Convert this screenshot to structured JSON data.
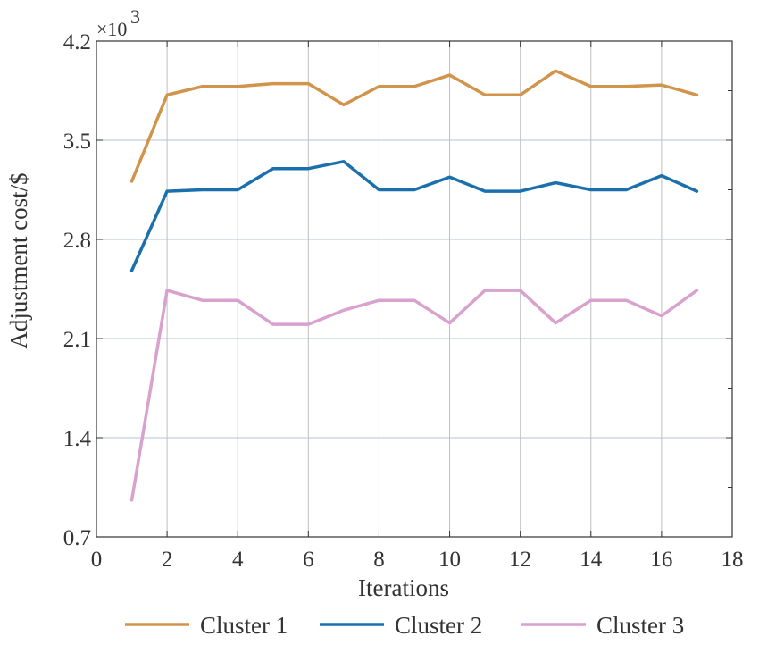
{
  "chart_data": {
    "type": "line",
    "title": "",
    "xlabel": "Iterations",
    "ylabel": "Adjustment cost/$",
    "y_multiplier_label": "×10",
    "y_multiplier_exponent": "3",
    "xlim": [
      0,
      18
    ],
    "ylim": [
      0.7,
      4.2
    ],
    "x_ticks": [
      "0",
      "2",
      "4",
      "6",
      "8",
      "10",
      "12",
      "14",
      "16",
      "18"
    ],
    "y_ticks": [
      "0.7",
      "1.4",
      "2.1",
      "2.8",
      "3.5",
      "4.2"
    ],
    "grid": true,
    "legend_position": "bottom",
    "x": [
      1,
      2,
      3,
      4,
      5,
      6,
      7,
      8,
      9,
      10,
      11,
      12,
      13,
      14,
      15,
      16,
      17
    ],
    "series": [
      {
        "name": "Cluster 1",
        "color": "#D0954B",
        "values": [
          3.21,
          3.82,
          3.88,
          3.88,
          3.9,
          3.9,
          3.75,
          3.88,
          3.88,
          3.96,
          3.82,
          3.82,
          3.99,
          3.88,
          3.88,
          3.89,
          3.82
        ]
      },
      {
        "name": "Cluster 2",
        "color": "#1A6FAD",
        "values": [
          2.58,
          3.14,
          3.15,
          3.15,
          3.3,
          3.3,
          3.35,
          3.15,
          3.15,
          3.24,
          3.14,
          3.14,
          3.2,
          3.15,
          3.15,
          3.25,
          3.14
        ]
      },
      {
        "name": "Cluster 3",
        "color": "#D8A1CE",
        "values": [
          0.96,
          2.44,
          2.37,
          2.37,
          2.2,
          2.2,
          2.3,
          2.37,
          2.37,
          2.21,
          2.44,
          2.44,
          2.21,
          2.37,
          2.37,
          2.26,
          2.44
        ]
      }
    ]
  }
}
